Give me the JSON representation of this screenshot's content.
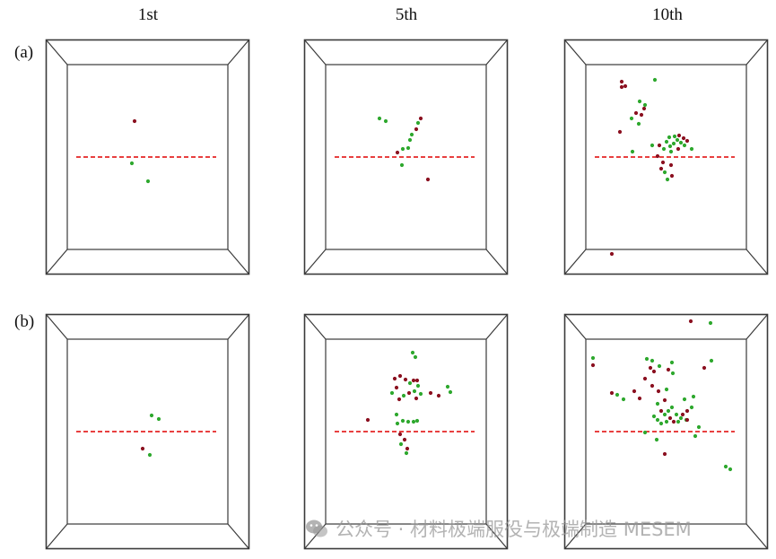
{
  "columns": [
    "1st",
    "5th",
    "10th"
  ],
  "rows": [
    "(a)",
    "(b)"
  ],
  "colors": {
    "frame": "#3a3a3a",
    "dashed_line": "#e00000",
    "particle_red": "#8b1020",
    "particle_green": "#2ea82e"
  },
  "watermark": {
    "icon": "wechat-icon",
    "text": "公众号 · 材料极端服役与极端制造 MESEM"
  }
}
